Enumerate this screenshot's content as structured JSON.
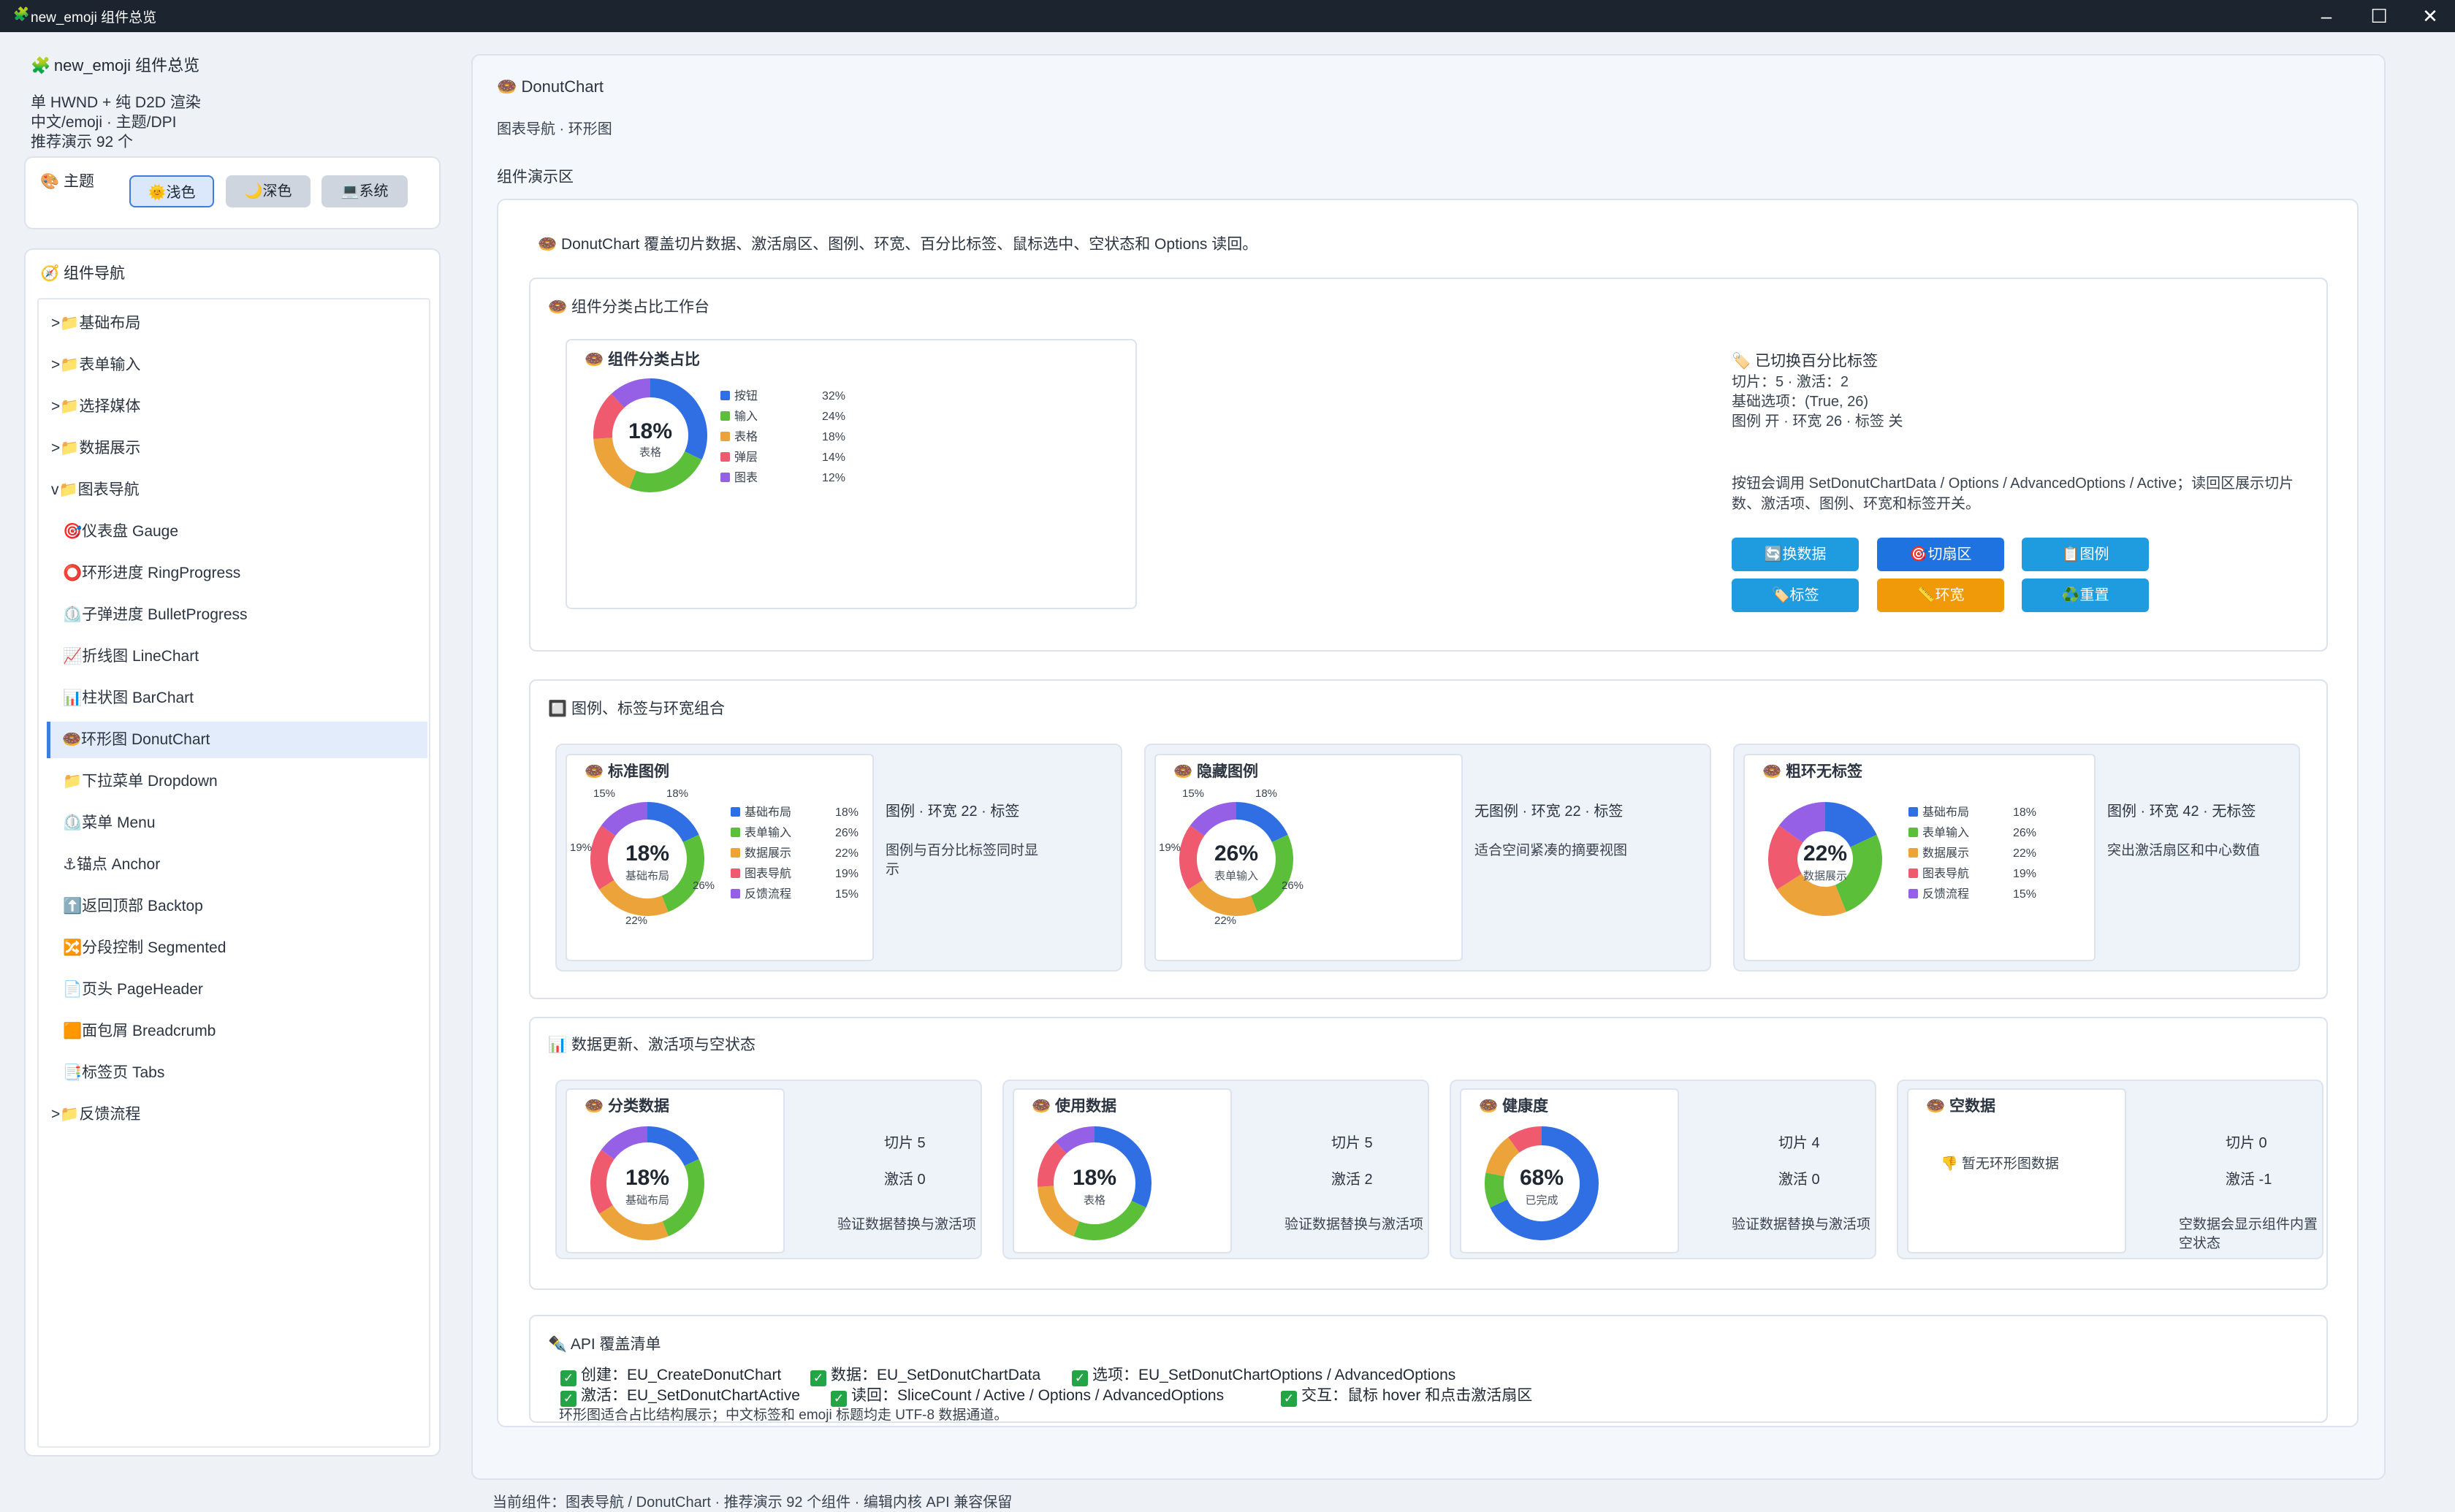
{
  "window": {
    "title": "new_emoji 组件总览",
    "icon": "🧩"
  },
  "sidebar": {
    "app_title": "new_emoji 组件总览",
    "info": [
      "单 HWND + 纯 D2D 渲染",
      "中文/emoji · 主题/DPI",
      "推荐演示 92 个"
    ],
    "theme": {
      "title": "主题",
      "buttons": [
        {
          "label": "🌞浅色",
          "active": true
        },
        {
          "label": "🌙深色",
          "active": false
        },
        {
          "label": "💻系统",
          "active": false
        }
      ]
    },
    "nav_title": "组件导航",
    "nav_items": [
      {
        "label": ">📁基础布局",
        "indent": false
      },
      {
        "label": ">📁表单输入",
        "indent": false
      },
      {
        "label": ">📁选择媒体",
        "indent": false
      },
      {
        "label": ">📁数据展示",
        "indent": false
      },
      {
        "label": "v📁图表导航",
        "indent": false
      },
      {
        "label": "🎯仪表盘 Gauge",
        "indent": true
      },
      {
        "label": "⭕环形进度 RingProgress",
        "indent": true
      },
      {
        "label": "⏲️子弹进度 BulletProgress",
        "indent": true
      },
      {
        "label": "📈折线图 LineChart",
        "indent": true
      },
      {
        "label": "📊柱状图 BarChart",
        "indent": true
      },
      {
        "label": "🍩环形图 DonutChart",
        "indent": true,
        "active": true
      },
      {
        "label": "📁下拉菜单 Dropdown",
        "indent": true
      },
      {
        "label": "⏲️菜单 Menu",
        "indent": true
      },
      {
        "label": "⚓锚点 Anchor",
        "indent": true
      },
      {
        "label": "⬆️返回顶部 Backtop",
        "indent": true
      },
      {
        "label": "🔀分段控制 Segmented",
        "indent": true
      },
      {
        "label": "📄页头 PageHeader",
        "indent": true
      },
      {
        "label": "🟧面包屑 Breadcrumb",
        "indent": true
      },
      {
        "label": "📑标签页 Tabs",
        "indent": true
      },
      {
        "label": ">📁反馈流程",
        "indent": false
      }
    ]
  },
  "main": {
    "title": "DonutChart",
    "subtitle": "图表导航 · 环形图",
    "demo_area": "组件演示区",
    "intro": "DonutChart 覆盖切片数据、激活扇区、图例、环宽、百分比标签、鼠标选中、空状态和 Options 读回。",
    "workbench": {
      "title": "组件分类占比工作台",
      "chart_title": "组件分类占比",
      "center_value": "18%",
      "center_label": "表格",
      "legend": [
        {
          "name": "按钮",
          "pct": "32%"
        },
        {
          "name": "输入",
          "pct": "24%"
        },
        {
          "name": "表格",
          "pct": "18%"
        },
        {
          "name": "弹层",
          "pct": "14%"
        },
        {
          "name": "图表",
          "pct": "12%"
        }
      ],
      "status_title": "已切换百分比标签",
      "status_lines": [
        "切片：5 · 激活：2",
        "基础选项：(True, 26)",
        "图例 开 · 环宽 26 · 标签 关"
      ],
      "desc": "按钮会调用 SetDonutChartData / Options / AdvancedOptions / Active；读回区展示切片数、激活项、图例、环宽和标签开关。",
      "buttons": [
        {
          "label": "🔄换数据",
          "color": "#1f9be0"
        },
        {
          "label": "🎯切扇区",
          "color": "#1f73e0"
        },
        {
          "label": "📋图例",
          "color": "#1f9be0"
        },
        {
          "label": "🏷️标签",
          "color": "#1f9be0"
        },
        {
          "label": "📏环宽",
          "color": "#f09a0a"
        },
        {
          "label": "♻️重置",
          "color": "#1f9be0"
        }
      ]
    },
    "legend_section": {
      "title": "图例、标签与环宽组合",
      "cards": [
        {
          "title": "标准图例",
          "center": "18%",
          "sub": "基础布局",
          "mode": "图例 · 环宽 22 · 标签",
          "desc": "图例与百分比标签同时显示",
          "legend": [
            [
              "基础布局",
              "18%"
            ],
            [
              "表单输入",
              "26%"
            ],
            [
              "数据展示",
              "22%"
            ],
            [
              "图表导航",
              "19%"
            ],
            [
              "反馈流程",
              "15%"
            ]
          ],
          "labels": [
            "15%",
            "18%",
            "19%",
            "26%",
            "22%"
          ]
        },
        {
          "title": "隐藏图例",
          "center": "26%",
          "sub": "表单输入",
          "mode": "无图例 · 环宽 22 · 标签",
          "desc": "适合空间紧凑的摘要视图",
          "labels": [
            "15%",
            "18%",
            "19%",
            "26%",
            "22%"
          ]
        },
        {
          "title": "粗环无标签",
          "center": "22%",
          "sub": "数据展示",
          "mode": "图例 · 环宽 42 · 无标签",
          "desc": "突出激活扇区和中心数值",
          "legend": [
            [
              "基础布局",
              "18%"
            ],
            [
              "表单输入",
              "26%"
            ],
            [
              "数据展示",
              "22%"
            ],
            [
              "图表导航",
              "19%"
            ],
            [
              "反馈流程",
              "15%"
            ]
          ]
        }
      ]
    },
    "data_section": {
      "title": "数据更新、激活项与空状态",
      "cards": [
        {
          "title": "分类数据",
          "center": "18%",
          "sub": "基础布局",
          "slices": "切片 5",
          "active": "激活 0",
          "desc": "验证数据替换与激活项"
        },
        {
          "title": "使用数据",
          "center": "18%",
          "sub": "表格",
          "slices": "切片 5",
          "active": "激活 2",
          "desc": "验证数据替换与激活项"
        },
        {
          "title": "健康度",
          "center": "68%",
          "sub": "已完成",
          "slices": "切片 4",
          "active": "激活 0",
          "desc": "验证数据替换与激活项"
        },
        {
          "title": "空数据",
          "empty": "👎 暂无环形图数据",
          "slices": "切片 0",
          "active": "激活 -1",
          "desc": "空数据会显示组件内置空状态"
        }
      ]
    },
    "api": {
      "title": "API 覆盖清单",
      "row1": [
        "创建：EU_CreateDonutChart",
        "数据：EU_SetDonutChartData",
        "选项：EU_SetDonutChartOptions / AdvancedOptions"
      ],
      "row2": [
        "激活：EU_SetDonutChartActive",
        "读回：SliceCount / Active / Options / AdvancedOptions",
        "交互：鼠标 hover 和点击激活扇区"
      ],
      "note": "环形图适合占比结构展示；中文标签和 emoji 标题均走 UTF-8 数据通道。"
    },
    "footer": "当前组件：图表导航 / DonutChart · 推荐演示 92 个组件 · 编辑内核 API 兼容保留"
  },
  "colors": {
    "blue": "#2f6fe3",
    "green": "#5cbf3a",
    "orange": "#eba33a",
    "red": "#ef5a6f",
    "purple": "#9560e6",
    "accent": "#3f7be0"
  },
  "chart_data": [
    {
      "type": "pie",
      "name": "组件分类占比",
      "categories": [
        "按钮",
        "输入",
        "表格",
        "弹层",
        "图表"
      ],
      "values": [
        32,
        24,
        18,
        14,
        12
      ]
    },
    {
      "type": "pie",
      "name": "标准图例",
      "categories": [
        "基础布局",
        "表单输入",
        "数据展示",
        "图表导航",
        "反馈流程"
      ],
      "values": [
        18,
        26,
        22,
        19,
        15
      ]
    },
    {
      "type": "pie",
      "name": "隐藏图例",
      "categories": [
        "基础布局",
        "表单输入",
        "数据展示",
        "图表导航",
        "反馈流程"
      ],
      "values": [
        18,
        26,
        22,
        19,
        15
      ]
    },
    {
      "type": "pie",
      "name": "粗环无标签",
      "categories": [
        "基础布局",
        "表单输入",
        "数据展示",
        "图表导航",
        "反馈流程"
      ],
      "values": [
        18,
        26,
        22,
        19,
        15
      ]
    },
    {
      "type": "pie",
      "name": "分类数据",
      "values": [
        18,
        26,
        22,
        19,
        15
      ]
    },
    {
      "type": "pie",
      "name": "使用数据",
      "values": [
        32,
        24,
        18,
        14,
        12
      ]
    },
    {
      "type": "pie",
      "name": "健康度",
      "values": [
        68,
        10,
        12,
        10
      ]
    }
  ]
}
